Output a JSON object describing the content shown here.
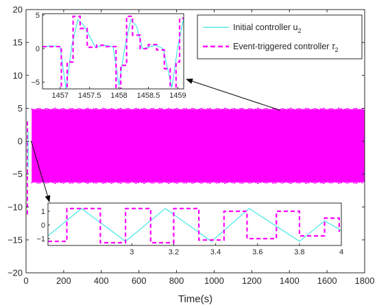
{
  "chart_data": {
    "type": "line",
    "xlabel": "Time(s)",
    "ylabel": "",
    "xlim": [
      0,
      1800
    ],
    "ylim": [
      -20,
      20
    ],
    "x_ticks": [
      0,
      200,
      400,
      600,
      800,
      1000,
      1200,
      1400,
      1600,
      1800
    ],
    "y_ticks": [
      -20,
      -15,
      -10,
      -5,
      0,
      5,
      10,
      15,
      20
    ],
    "legend_position": "top-right",
    "colors": {
      "initial": "#33E6E6",
      "event": "#FF00FF",
      "axis": "#262626"
    },
    "legend": {
      "initial": {
        "text": "Initial controller u",
        "sub": "2"
      },
      "event": {
        "text": "Event-triggered controller ",
        "sym": "τ",
        "sub": "2"
      }
    },
    "series": [
      {
        "name": "Initial controller u2",
        "style": "solid",
        "color": "#33E6E6",
        "band": {
          "x": [
            30,
            1800
          ],
          "y": [
            -6.0,
            4.6
          ]
        }
      },
      {
        "name": "Event-triggered controller τ2",
        "style": "dashed",
        "color": "#FF00FF",
        "band": {
          "x": [
            30,
            1800
          ],
          "y": [
            -6.2,
            4.8
          ]
        },
        "initial_transient": {
          "x": [
            0,
            30
          ],
          "y": [
            -11.5,
            3.0
          ]
        }
      }
    ],
    "insets": [
      {
        "id": "inset-top",
        "xlim": [
          1456.7,
          1459.1
        ],
        "ylim": [
          -6,
          5.2
        ],
        "x_ticks": [
          1457,
          1457.5,
          1458,
          1458.5,
          1459
        ],
        "y_ticks": [
          -5,
          0,
          5
        ],
        "points_to": [
          1350,
          4.6
        ],
        "initial": {
          "x": [
            1456.7,
            1456.85,
            1457.0,
            1457.1,
            1457.2,
            1457.3,
            1457.4,
            1457.6,
            1457.75,
            1457.9,
            1458.0,
            1458.1,
            1458.2,
            1458.3,
            1458.4,
            1458.5,
            1458.62,
            1458.75,
            1458.9,
            1459.0,
            1459.1
          ],
          "y": [
            0.3,
            0.4,
            0.3,
            -6.0,
            0.5,
            4.3,
            3.5,
            0.2,
            0.5,
            0.3,
            -5.5,
            0.3,
            4.3,
            3.3,
            0.0,
            0.2,
            0.5,
            0.0,
            -5.8,
            0.3,
            4.5
          ]
        },
        "event": {
          "x": [
            1456.7,
            1457.02,
            1457.02,
            1457.12,
            1457.12,
            1457.22,
            1457.22,
            1457.34,
            1457.34,
            1457.46,
            1457.46,
            1457.62,
            1457.62,
            1457.78,
            1457.78,
            1457.95,
            1457.95,
            1458.03,
            1458.03,
            1458.13,
            1458.13,
            1458.23,
            1458.23,
            1458.36,
            1458.36,
            1458.5,
            1458.5,
            1458.64,
            1458.64,
            1458.77,
            1458.77,
            1458.87,
            1458.87,
            1458.97,
            1458.97,
            1459.03,
            1459.03,
            1459.1
          ],
          "y": [
            0.3,
            0.3,
            -6.5,
            -6.5,
            -2.0,
            -2.0,
            4.8,
            4.8,
            3.0,
            3.0,
            0.2,
            0.2,
            0.5,
            0.5,
            0.3,
            0.3,
            -6.5,
            -6.5,
            -2.5,
            -2.5,
            4.8,
            4.8,
            2.0,
            2.0,
            0.0,
            0.0,
            0.6,
            0.6,
            -0.2,
            -0.2,
            -3.0,
            -3.0,
            -6.5,
            -6.5,
            -2.0,
            -2.0,
            4.5,
            4.5
          ]
        }
      },
      {
        "id": "inset-bottom",
        "xlim": [
          2.6,
          4.0
        ],
        "ylim": [
          -1.5,
          1.6
        ],
        "x_ticks": [
          3,
          3.2,
          3.4,
          3.6,
          3.8,
          4
        ],
        "y_ticks": [
          -1,
          0,
          1
        ],
        "points_to": [
          5,
          -11
        ],
        "initial": {
          "x": [
            2.6,
            2.76,
            2.97,
            3.16,
            3.38,
            3.56,
            3.8,
            3.92,
            4.0
          ],
          "y": [
            -0.8,
            1.2,
            -1.2,
            1.2,
            -1.2,
            1.2,
            -1.2,
            0.3,
            -0.4
          ]
        },
        "event": {
          "x": [
            2.6,
            2.69,
            2.69,
            2.85,
            2.85,
            2.97,
            2.97,
            3.09,
            3.09,
            3.2,
            3.2,
            3.32,
            3.32,
            3.44,
            3.44,
            3.55,
            3.55,
            3.69,
            3.69,
            3.8,
            3.8,
            3.92,
            3.92,
            3.99,
            3.99
          ],
          "y": [
            -1.2,
            -1.2,
            1.2,
            1.2,
            -1.3,
            -1.3,
            1.2,
            1.2,
            -1.3,
            -1.3,
            1.2,
            1.2,
            -1.1,
            -1.1,
            1.0,
            1.0,
            -1.0,
            -1.0,
            1.0,
            1.0,
            -0.8,
            -0.8,
            0.5,
            0.5,
            -0.5
          ]
        }
      }
    ]
  }
}
